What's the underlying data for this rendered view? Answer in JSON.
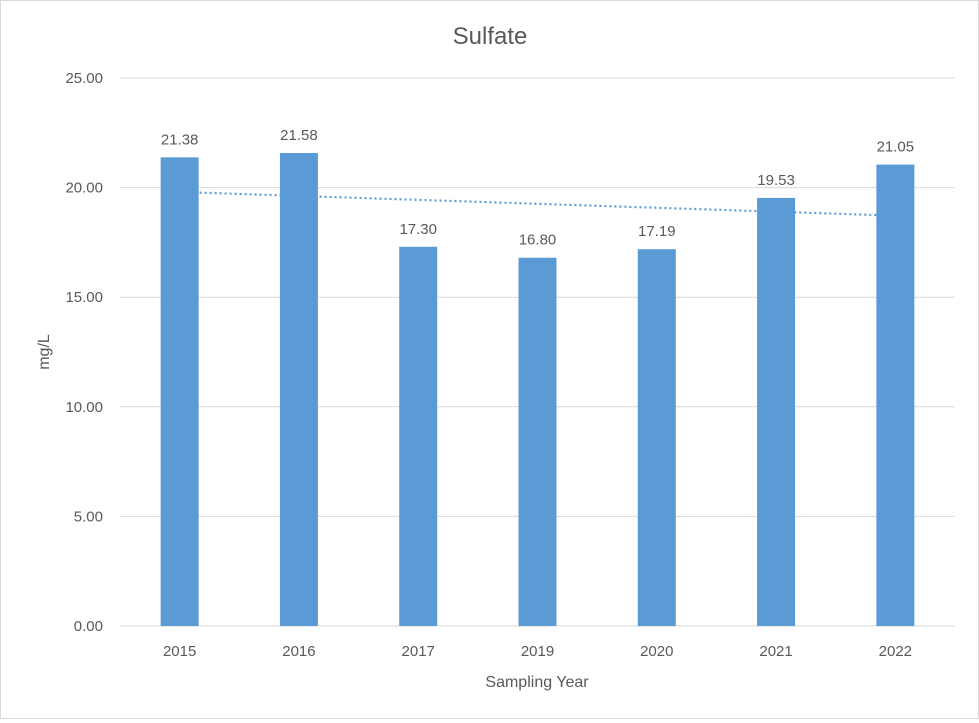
{
  "chart_data": {
    "type": "bar",
    "title": "Sulfate",
    "xlabel": "Sampling Year",
    "ylabel": "mg/L",
    "categories": [
      "2015",
      "2016",
      "2017",
      "2019",
      "2020",
      "2021",
      "2022"
    ],
    "values": [
      21.38,
      21.58,
      17.3,
      16.8,
      17.19,
      19.53,
      21.05
    ],
    "data_labels": [
      "21.38",
      "21.58",
      "17.30",
      "16.80",
      "17.19",
      "19.53",
      "21.05"
    ],
    "ylim": [
      0,
      25
    ],
    "yticks": [
      "0.00",
      "5.00",
      "10.00",
      "15.00",
      "20.00",
      "25.00"
    ],
    "grid": true,
    "legend": "none",
    "trendline": {
      "type": "linear",
      "style": "dotted",
      "start_value": 19.8,
      "end_value": 18.72
    },
    "colors": {
      "bar": "#5b9bd5",
      "trendline": "#5b9bd5",
      "grid": "#d9d9d9",
      "text": "#595959"
    }
  }
}
